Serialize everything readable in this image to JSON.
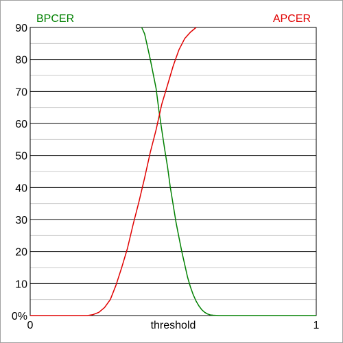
{
  "chart_data": {
    "type": "line",
    "title": "",
    "xlabel": "threshold",
    "ylabel": "",
    "xlim": [
      0,
      1
    ],
    "ylim": [
      0,
      90
    ],
    "x_tick_labels": [
      "0",
      "1"
    ],
    "y_tick_labels": [
      "0%",
      "10",
      "20",
      "30",
      "40",
      "50",
      "60",
      "70",
      "80",
      "90"
    ],
    "y_major_ticks": [
      0,
      10,
      20,
      30,
      40,
      50,
      60,
      70,
      80,
      90
    ],
    "y_minor_ticks": [
      5,
      15,
      25,
      35,
      45,
      55,
      65,
      75,
      85
    ],
    "grid": true,
    "series": [
      {
        "name": "BPCER",
        "color": "#008000",
        "x": [
          0.39,
          0.4,
          0.41,
          0.42,
          0.43,
          0.44,
          0.45,
          0.46,
          0.47,
          0.48,
          0.49,
          0.5,
          0.51,
          0.52,
          0.53,
          0.54,
          0.55,
          0.56,
          0.57,
          0.58,
          0.59,
          0.6,
          0.61,
          0.62,
          0.63,
          0.64,
          0.66,
          0.68,
          0.7,
          1.0
        ],
        "y": [
          90.0,
          88.0,
          84.0,
          80.0,
          75.5,
          71.0,
          64.0,
          58.0,
          52.0,
          46.5,
          40.0,
          34.5,
          29.0,
          24.5,
          20.0,
          16.0,
          12.0,
          9.0,
          6.5,
          4.5,
          3.0,
          1.8,
          1.0,
          0.5,
          0.2,
          0.1,
          0.0,
          0.0,
          0.0,
          0.0
        ]
      },
      {
        "name": "APCER",
        "color": "#e00000",
        "x": [
          0.0,
          0.2,
          0.22,
          0.24,
          0.26,
          0.28,
          0.3,
          0.32,
          0.34,
          0.36,
          0.38,
          0.4,
          0.42,
          0.44,
          0.46,
          0.48,
          0.5,
          0.52,
          0.54,
          0.56,
          0.58
        ],
        "y": [
          0.0,
          0.0,
          0.3,
          1.0,
          2.5,
          5.0,
          9.5,
          15.0,
          21.0,
          28.5,
          35.5,
          43.0,
          51.0,
          58.0,
          66.0,
          72.0,
          78.0,
          83.0,
          86.5,
          88.5,
          90.0
        ]
      }
    ]
  }
}
